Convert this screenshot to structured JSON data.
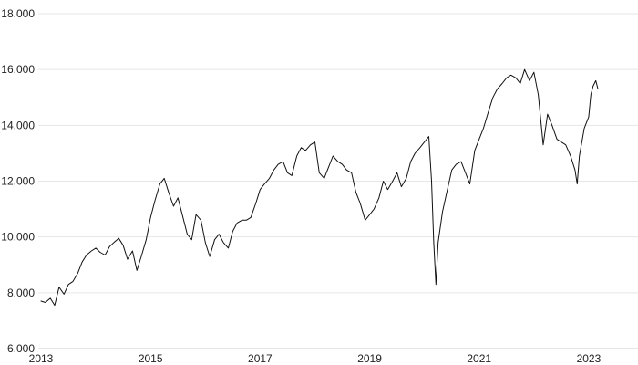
{
  "chart_data": {
    "type": "line",
    "title": "",
    "xlabel": "",
    "ylabel": "",
    "grid": true,
    "grid_axis": "y",
    "legend": "none",
    "x_range": [
      2012.95,
      2023.9
    ],
    "ylim": [
      6000,
      18000
    ],
    "y_ticks": [
      6000,
      8000,
      10000,
      12000,
      14000,
      16000,
      18000
    ],
    "y_tick_labels": [
      "6.000",
      "8.000",
      "10.000",
      "12.000",
      "14.000",
      "16.000",
      "18.000"
    ],
    "x_ticks": [
      2013,
      2015,
      2017,
      2019,
      2021,
      2023
    ],
    "x_tick_labels": [
      "2013",
      "2015",
      "2017",
      "2019",
      "2021",
      "2023"
    ],
    "line_color": "#111111",
    "grid_color": "#e6e6e6",
    "series": [
      {
        "x": [
          2013.0,
          2013.08,
          2013.17,
          2013.25,
          2013.33,
          2013.42,
          2013.5,
          2013.58,
          2013.67,
          2013.75,
          2013.83,
          2013.92,
          2014.0,
          2014.08,
          2014.17,
          2014.25,
          2014.33,
          2014.42,
          2014.5,
          2014.58,
          2014.67,
          2014.75,
          2014.83,
          2014.92,
          2015.0,
          2015.08,
          2015.17,
          2015.25,
          2015.33,
          2015.42,
          2015.5,
          2015.58,
          2015.67,
          2015.75,
          2015.83,
          2015.92,
          2016.0,
          2016.08,
          2016.17,
          2016.25,
          2016.33,
          2016.42,
          2016.5,
          2016.58,
          2016.67,
          2016.75,
          2016.83,
          2016.92,
          2017.0,
          2017.08,
          2017.17,
          2017.25,
          2017.33,
          2017.42,
          2017.5,
          2017.58,
          2017.67,
          2017.75,
          2017.83,
          2017.92,
          2018.0,
          2018.08,
          2018.17,
          2018.25,
          2018.33,
          2018.42,
          2018.5,
          2018.58,
          2018.67,
          2018.75,
          2018.83,
          2018.92,
          2019.0,
          2019.08,
          2019.17,
          2019.25,
          2019.33,
          2019.42,
          2019.5,
          2019.58,
          2019.67,
          2019.75,
          2019.83,
          2019.92,
          2020.0,
          2020.08,
          2020.13,
          2020.17,
          2020.21,
          2020.25,
          2020.33,
          2020.42,
          2020.5,
          2020.58,
          2020.67,
          2020.75,
          2020.83,
          2020.92,
          2021.0,
          2021.08,
          2021.17,
          2021.25,
          2021.33,
          2021.42,
          2021.5,
          2021.58,
          2021.67,
          2021.75,
          2021.83,
          2021.92,
          2022.0,
          2022.08,
          2022.13,
          2022.17,
          2022.25,
          2022.33,
          2022.42,
          2022.5,
          2022.58,
          2022.67,
          2022.75,
          2022.79,
          2022.83,
          2022.92,
          2023.0,
          2023.04,
          2023.08,
          2023.13,
          2023.17
        ],
        "values": [
          7700,
          7650,
          7800,
          7550,
          8200,
          7950,
          8300,
          8400,
          8700,
          9100,
          9350,
          9500,
          9600,
          9450,
          9350,
          9650,
          9800,
          9950,
          9700,
          9200,
          9500,
          8800,
          9300,
          9900,
          10700,
          11300,
          11900,
          12100,
          11600,
          11100,
          11400,
          10800,
          10100,
          9900,
          10800,
          10600,
          9800,
          9300,
          9900,
          10100,
          9800,
          9600,
          10200,
          10500,
          10600,
          10600,
          10700,
          11200,
          11700,
          11900,
          12100,
          12400,
          12600,
          12700,
          12300,
          12200,
          12900,
          13200,
          13100,
          13300,
          13400,
          12300,
          12100,
          12500,
          12900,
          12700,
          12600,
          12400,
          12300,
          11600,
          11200,
          10600,
          10800,
          11000,
          11400,
          12000,
          11700,
          12000,
          12300,
          11800,
          12100,
          12700,
          13000,
          13200,
          13400,
          13600,
          12000,
          9800,
          8300,
          9800,
          10900,
          11700,
          12400,
          12600,
          12700,
          12300,
          11900,
          13100,
          13500,
          13900,
          14500,
          15000,
          15300,
          15500,
          15700,
          15800,
          15700,
          15500,
          16000,
          15600,
          15900,
          15100,
          14100,
          13300,
          14400,
          14000,
          13500,
          13400,
          13300,
          12900,
          12400,
          11900,
          12900,
          13900,
          14300,
          15100,
          15400,
          15600,
          15300
        ]
      }
    ]
  }
}
